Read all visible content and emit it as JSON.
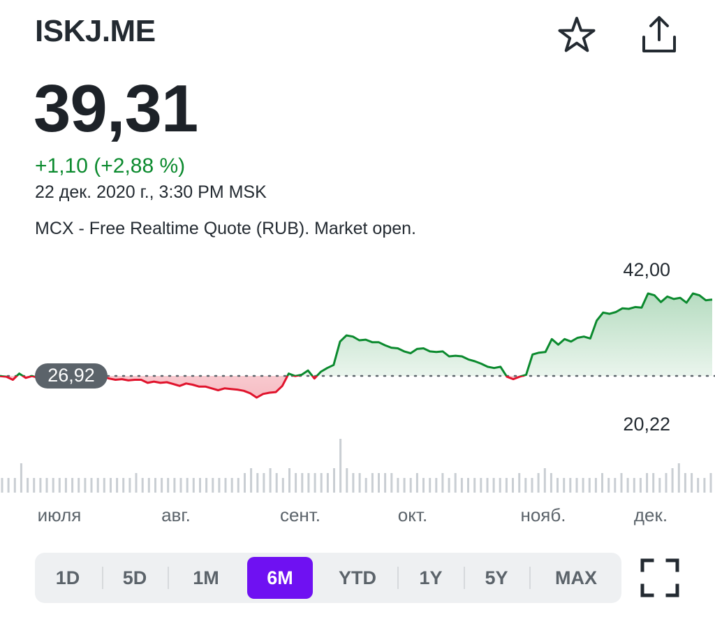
{
  "header": {
    "ticker": "ISKJ.ME",
    "star_icon": "star-outline-icon",
    "share_icon": "share-upload-icon"
  },
  "quote": {
    "price": "39,31",
    "change": "+1,10 (+2,88 %)",
    "timestamp": "22 дек. 2020 г., 3:30 PM MSK",
    "note": "MCX - Free Realtime Quote (RUB). Market open."
  },
  "colors": {
    "up": "#0b8a2e",
    "down": "#e0132c",
    "accent": "#6f11f2",
    "volume": "#c9ced3"
  },
  "chart_data": {
    "type": "area",
    "title": "",
    "baseline": 26.92,
    "baseline_label": "26,92",
    "y_high_label": "42,00",
    "y_low_label": "20,22",
    "ylim": [
      20.22,
      42.0
    ],
    "x_labels": [
      "июля",
      "авг.",
      "сент.",
      "окт.",
      "нояб.",
      "дек."
    ],
    "series": [
      {
        "values": [
          26.9,
          26.8,
          26.3,
          27.3,
          26.6,
          26.9,
          26.6,
          26.8,
          26.7,
          26.9,
          26.5,
          26.8,
          26.9,
          26.6,
          26.5,
          26.6,
          26.8,
          26.5,
          26.3,
          26.4,
          26.2,
          26.3,
          26.3,
          25.8,
          26.0,
          25.8,
          25.9,
          25.6,
          25.3,
          25.7,
          25.5,
          25.2,
          25.2,
          24.9,
          24.6,
          24.9,
          24.8,
          24.7,
          24.5,
          24.1,
          23.4,
          24.0,
          24.2,
          24.3,
          25.3,
          27.3,
          26.9,
          27.1,
          27.8,
          26.5,
          27.6,
          28.2,
          28.7,
          32.5,
          33.5,
          33.3,
          32.7,
          32.8,
          32.4,
          32.4,
          31.9,
          31.5,
          31.4,
          30.9,
          30.6,
          31.3,
          31.4,
          30.9,
          30.8,
          30.9,
          30.1,
          30.2,
          30.1,
          29.6,
          29.3,
          28.9,
          28.4,
          28.2,
          28.4,
          26.8,
          26.4,
          26.8,
          27.1,
          30.4,
          30.7,
          30.8,
          32.9,
          32.0,
          32.9,
          32.5,
          33.1,
          33.3,
          33.0,
          35.9,
          37.2,
          37.0,
          37.3,
          37.9,
          37.8,
          38.1,
          38.0,
          40.3,
          40.0,
          38.9,
          39.8,
          39.4,
          39.6,
          38.8,
          40.3,
          40.0,
          39.2,
          39.31
        ]
      }
    ],
    "volume": [
      0.15,
      0.15,
      0.15,
      0.3,
      0.15,
      0.15,
      0.15,
      0.15,
      0.15,
      0.15,
      0.15,
      0.15,
      0.15,
      0.15,
      0.15,
      0.15,
      0.15,
      0.15,
      0.15,
      0.15,
      0.15,
      0.2,
      0.15,
      0.15,
      0.15,
      0.15,
      0.15,
      0.15,
      0.15,
      0.15,
      0.15,
      0.15,
      0.15,
      0.15,
      0.15,
      0.15,
      0.15,
      0.15,
      0.2,
      0.25,
      0.2,
      0.2,
      0.25,
      0.2,
      0.15,
      0.25,
      0.2,
      0.2,
      0.2,
      0.2,
      0.2,
      0.2,
      0.25,
      0.55,
      0.25,
      0.2,
      0.2,
      0.15,
      0.2,
      0.2,
      0.2,
      0.2,
      0.15,
      0.15,
      0.15,
      0.2,
      0.15,
      0.15,
      0.15,
      0.2,
      0.15,
      0.2,
      0.15,
      0.15,
      0.15,
      0.15,
      0.15,
      0.15,
      0.15,
      0.15,
      0.15,
      0.2,
      0.15,
      0.15,
      0.2,
      0.25,
      0.2,
      0.15,
      0.15,
      0.15,
      0.15,
      0.15,
      0.15,
      0.15,
      0.2,
      0.15,
      0.15,
      0.2,
      0.15,
      0.15,
      0.15,
      0.2,
      0.2,
      0.15,
      0.2,
      0.25,
      0.3,
      0.2,
      0.2,
      0.15,
      0.15,
      0.2
    ]
  },
  "range_selector": {
    "options": [
      "1D",
      "5D",
      "1M",
      "6M",
      "YTD",
      "1Y",
      "5Y",
      "MAX"
    ],
    "selected": "6M",
    "fullscreen_icon": "fullscreen-expand-icon"
  }
}
